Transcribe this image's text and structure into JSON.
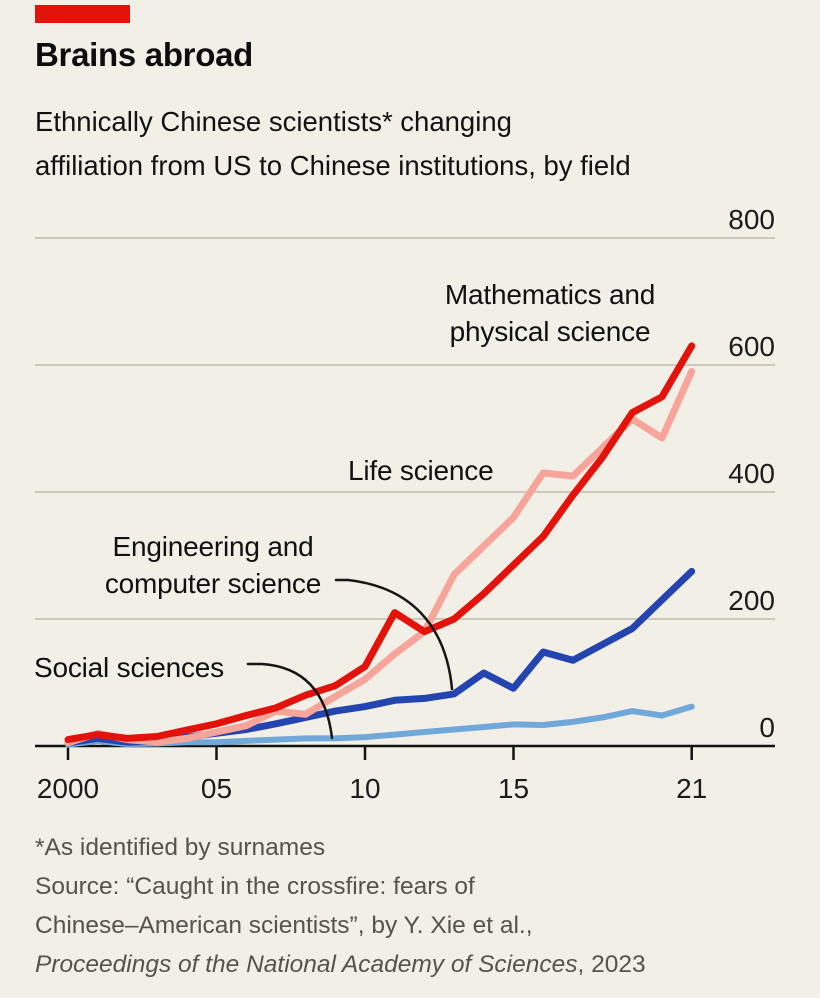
{
  "header": {
    "title": "Brains abroad",
    "subtitle_line1": "Ethnically Chinese scientists* changing",
    "subtitle_line2": "affiliation from US to Chinese institutions, by field",
    "accent_color": "#e3120b"
  },
  "chart_data": {
    "type": "line",
    "title": "Brains abroad",
    "subtitle": "Ethnically Chinese scientists* changing affiliation from US to Chinese institutions, by field",
    "xlabel": "",
    "ylabel": "",
    "ylim": [
      0,
      800
    ],
    "yticks": [
      0,
      200,
      400,
      600,
      800
    ],
    "grid": true,
    "legend_position": "direct-labels-on-chart",
    "x": [
      2000,
      2001,
      2002,
      2003,
      2004,
      2005,
      2006,
      2007,
      2008,
      2009,
      2010,
      2011,
      2012,
      2013,
      2014,
      2015,
      2016,
      2017,
      2018,
      2019,
      2020,
      2021
    ],
    "xticks": [
      {
        "year": 2000,
        "label": "2000"
      },
      {
        "year": 2005,
        "label": "05"
      },
      {
        "year": 2010,
        "label": "10"
      },
      {
        "year": 2015,
        "label": "15"
      },
      {
        "year": 2021,
        "label": "21"
      }
    ],
    "series": [
      {
        "name": "Social sciences",
        "color": "#71a8da",
        "values": [
          2,
          8,
          3,
          4,
          6,
          6,
          8,
          10,
          12,
          12,
          14,
          18,
          22,
          26,
          30,
          34,
          33,
          38,
          45,
          55,
          48,
          62
        ]
      },
      {
        "name": "Engineering and computer science",
        "color": "#2444b0",
        "values": [
          5,
          12,
          6,
          8,
          14,
          20,
          26,
          35,
          45,
          55,
          62,
          72,
          75,
          82,
          115,
          91,
          148,
          135,
          160,
          185,
          230,
          275
        ]
      },
      {
        "name": "Life science",
        "color": "#f7a59b",
        "values": [
          5,
          20,
          10,
          6,
          12,
          22,
          32,
          55,
          50,
          78,
          105,
          145,
          180,
          270,
          315,
          360,
          430,
          425,
          470,
          515,
          485,
          590
        ]
      },
      {
        "name": "Mathematics and physical science",
        "color": "#e3120b",
        "values": [
          10,
          18,
          12,
          15,
          25,
          35,
          48,
          60,
          80,
          95,
          125,
          210,
          180,
          200,
          240,
          285,
          330,
          395,
          455,
          525,
          550,
          630
        ]
      }
    ],
    "axis_color": "#121212",
    "gridline_color": "#ccc8bc"
  },
  "annotations": {
    "math_line1": "Mathematics and",
    "math_line2": "physical science",
    "life": "Life science",
    "eng_line1": "Engineering and",
    "eng_line2": "computer science",
    "social": "Social sciences"
  },
  "footer": {
    "footnote": "*As identified by surnames",
    "source_line1": "Source: “Caught in the crossfire: fears of",
    "source_line2": "Chinese–American scientists”, by Y. Xie et al.,",
    "journal": "Proceedings of the National Academy of Sciences",
    "year_suffix": ", 2023"
  }
}
